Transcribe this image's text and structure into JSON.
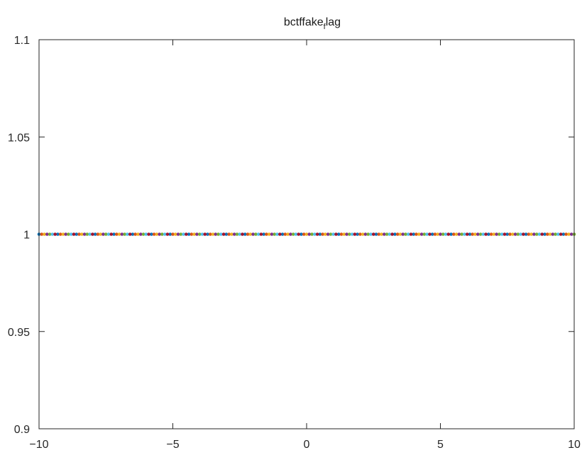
{
  "chart_data": {
    "type": "scatter",
    "title_main": "bctffake",
    "title_sub": "f",
    "title_tail": "lag",
    "xlabel": "",
    "ylabel": "",
    "xlim": [
      -10,
      10
    ],
    "ylim": [
      0.9,
      1.1
    ],
    "xticks": [
      -10,
      -5,
      0,
      5,
      10
    ],
    "xtick_labels": [
      "−10",
      "−5",
      "0",
      "5",
      "10"
    ],
    "yticks": [
      0.9,
      0.95,
      1,
      1.05,
      1.1
    ],
    "ytick_labels": [
      "0.9",
      "0.95",
      "1",
      "1.05",
      "1.1"
    ],
    "grid": false,
    "legend": "none",
    "series": [
      {
        "color": "#0072bd",
        "x_start": -10,
        "x_end": 10,
        "x_step": 0.7,
        "y": 1
      },
      {
        "color": "#d95319",
        "x_start": -9.9,
        "x_end": 10,
        "x_step": 0.7,
        "y": 1
      },
      {
        "color": "#edb120",
        "x_start": -9.8,
        "x_end": 10,
        "x_step": 0.7,
        "y": 1
      },
      {
        "color": "#7e2f8e",
        "x_start": -9.7,
        "x_end": 10,
        "x_step": 0.7,
        "y": 1
      },
      {
        "color": "#77ac30",
        "x_start": -9.6,
        "x_end": 10,
        "x_step": 0.7,
        "y": 1
      },
      {
        "color": "#4dbeee",
        "x_start": -9.5,
        "x_end": 10,
        "x_step": 0.7,
        "y": 1
      },
      {
        "color": "#a2142f",
        "x_start": -9.4,
        "x_end": 10,
        "x_step": 0.7,
        "y": 1
      }
    ]
  }
}
